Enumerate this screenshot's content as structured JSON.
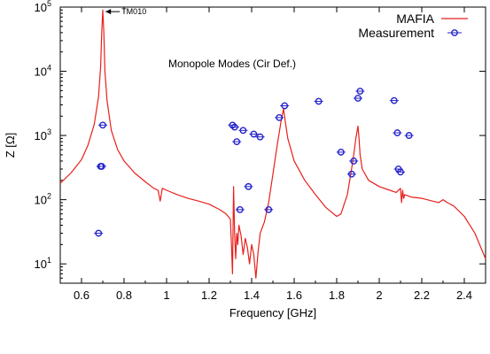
{
  "chart_data": {
    "type": "line",
    "title": "",
    "annotation": "Monopole Modes (Cir Def.)",
    "peak_label": "TM010",
    "peak_label_x": 0.705,
    "peak_label_y": 85000,
    "xlabel": "Frequency [GHz]",
    "ylabel": "Z [Ω]",
    "xlim": [
      0.5,
      2.5
    ],
    "ylim": [
      5,
      100000
    ],
    "y_scale": "log",
    "grid": false,
    "legend_position": "top-right",
    "x_ticks": [
      0.6,
      0.8,
      1.0,
      1.2,
      1.4,
      1.6,
      1.8,
      2.0,
      2.2,
      2.4
    ],
    "x_tick_labels": [
      "0.6",
      "0.8",
      "1",
      "1.2",
      "1.4",
      "1.6",
      "1.8",
      "2",
      "2.2",
      "2.4"
    ],
    "y_ticks": [
      10,
      100,
      1000,
      10000,
      100000
    ],
    "y_tick_base": "10",
    "y_tick_exponents": [
      "1",
      "2",
      "3",
      "4",
      "5"
    ],
    "series": [
      {
        "name": "MAFIA",
        "kind": "line",
        "color": "#e8201c",
        "x": [
          0.5,
          0.55,
          0.6,
          0.63,
          0.66,
          0.68,
          0.69,
          0.695,
          0.7,
          0.705,
          0.71,
          0.72,
          0.74,
          0.77,
          0.8,
          0.85,
          0.9,
          0.94,
          0.96,
          0.97,
          0.98,
          1.0,
          1.05,
          1.1,
          1.15,
          1.2,
          1.25,
          1.28,
          1.3,
          1.305,
          1.31,
          1.315,
          1.32,
          1.325,
          1.33,
          1.335,
          1.34,
          1.35,
          1.36,
          1.37,
          1.38,
          1.39,
          1.4,
          1.41,
          1.42,
          1.43,
          1.44,
          1.46,
          1.48,
          1.5,
          1.52,
          1.54,
          1.55,
          1.56,
          1.57,
          1.6,
          1.65,
          1.7,
          1.75,
          1.8,
          1.82,
          1.85,
          1.87,
          1.88,
          1.89,
          1.9,
          1.905,
          1.91,
          1.92,
          1.95,
          2.0,
          2.05,
          2.08,
          2.1,
          2.105,
          2.11,
          2.115,
          2.12,
          2.15,
          2.2,
          2.25,
          2.28,
          2.3,
          2.32,
          2.35,
          2.4,
          2.45,
          2.5
        ],
        "y": [
          180,
          260,
          420,
          700,
          1500,
          4000,
          12000,
          40000,
          90000,
          40000,
          10000,
          3500,
          1200,
          600,
          400,
          260,
          190,
          150,
          140,
          95,
          150,
          140,
          120,
          105,
          95,
          85,
          70,
          60,
          50,
          20,
          7,
          160,
          30,
          12,
          30,
          20,
          40,
          28,
          14,
          25,
          18,
          10,
          20,
          14,
          6,
          15,
          30,
          45,
          90,
          250,
          700,
          1800,
          2600,
          1500,
          900,
          400,
          200,
          120,
          75,
          55,
          60,
          120,
          300,
          500,
          900,
          1400,
          900,
          500,
          300,
          200,
          160,
          140,
          130,
          150,
          90,
          140,
          105,
          120,
          110,
          105,
          95,
          90,
          100,
          90,
          80,
          55,
          30,
          12
        ]
      },
      {
        "name": "Measurement",
        "kind": "scatter",
        "color": "#2222cc",
        "x": [
          0.68,
          0.69,
          0.695,
          0.7,
          1.31,
          1.32,
          1.33,
          1.345,
          1.36,
          1.385,
          1.41,
          1.44,
          1.48,
          1.53,
          1.555,
          1.715,
          1.82,
          1.87,
          1.88,
          1.9,
          1.91,
          2.07,
          2.085,
          2.09,
          2.1,
          2.14
        ],
        "y": [
          30,
          330,
          330,
          1450,
          1450,
          1350,
          800,
          70,
          1200,
          160,
          1050,
          950,
          70,
          1900,
          2900,
          3400,
          550,
          250,
          400,
          3800,
          4900,
          3500,
          1100,
          300,
          270,
          1000
        ]
      }
    ]
  }
}
